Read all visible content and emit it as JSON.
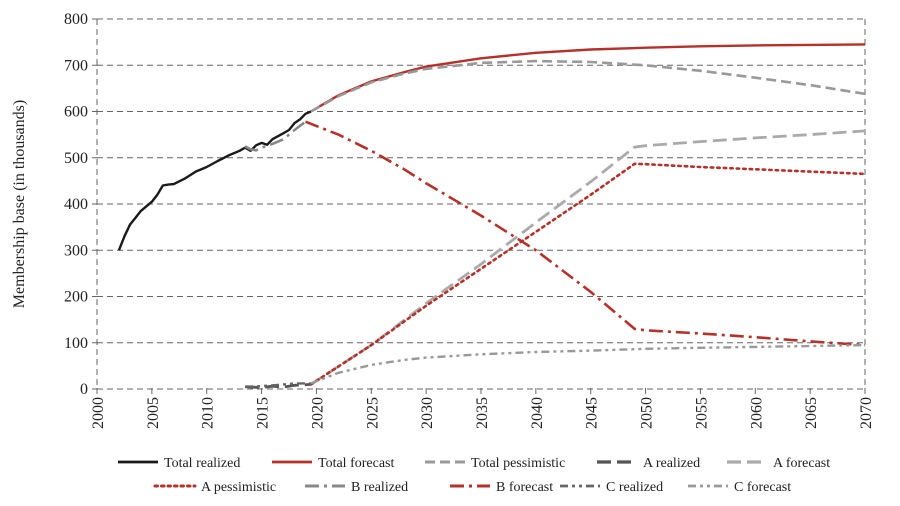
{
  "chart_data": {
    "type": "line",
    "title": "",
    "xlabel": "",
    "ylabel": "Membership base (in thousands)",
    "xlim": [
      2000,
      2070
    ],
    "ylim": [
      0,
      800
    ],
    "x_ticks": [
      "2000",
      "2005",
      "2010",
      "2015",
      "2020",
      "2025",
      "2030",
      "2035",
      "2040",
      "2045",
      "2050",
      "2055",
      "2060",
      "2065",
      "2070"
    ],
    "y_ticks": [
      "0",
      "100",
      "200",
      "300",
      "400",
      "500",
      "600",
      "700",
      "800"
    ],
    "grid": true,
    "legend_position": "bottom",
    "series": [
      {
        "name": "Total realized",
        "color": "#1a1a1a",
        "style": "solid",
        "x": [
          2002,
          2002.5,
          2003,
          2003.5,
          2004,
          2005,
          2005.5,
          2006,
          2006.5,
          2007,
          2008,
          2009,
          2010,
          2011,
          2012,
          2013,
          2013.5,
          2014,
          2014.5,
          2015,
          2015.5,
          2016,
          2017,
          2017.5,
          2018,
          2018.5,
          2019,
          2019.5
        ],
        "y": [
          300,
          330,
          355,
          370,
          385,
          405,
          420,
          440,
          442,
          443,
          455,
          470,
          480,
          493,
          505,
          515,
          522,
          515,
          527,
          532,
          528,
          540,
          553,
          560,
          575,
          583,
          595,
          600
        ]
      },
      {
        "name": "Total forecast",
        "color": "#b5312a",
        "style": "solid",
        "x": [
          2019.5,
          2022,
          2025,
          2028,
          2030,
          2035,
          2040,
          2045,
          2050,
          2055,
          2060,
          2065,
          2070
        ],
        "y": [
          600,
          635,
          665,
          685,
          697,
          715,
          727,
          734,
          738,
          741,
          743,
          744,
          745
        ]
      },
      {
        "name": "Total pessimistic",
        "color": "#999999",
        "style": "dash",
        "x": [
          2019.5,
          2022,
          2025,
          2028,
          2030,
          2035,
          2040,
          2045,
          2050,
          2055,
          2060,
          2065,
          2070
        ],
        "y": [
          600,
          633,
          663,
          682,
          692,
          705,
          709,
          707,
          700,
          688,
          673,
          657,
          638
        ]
      },
      {
        "name": "A realized",
        "color": "#555555",
        "style": "longdash",
        "x": [
          2013.5,
          2015,
          2016,
          2017,
          2018,
          2019.5
        ],
        "y": [
          5,
          3,
          6,
          4,
          8,
          10
        ]
      },
      {
        "name": "A forecast",
        "color": "#aaaaaa",
        "style": "longdash",
        "x": [
          2019.5,
          2025,
          2030,
          2035,
          2040,
          2045,
          2049,
          2050,
          2055,
          2060,
          2065,
          2070
        ],
        "y": [
          10,
          95,
          185,
          270,
          360,
          448,
          523,
          526,
          535,
          543,
          550,
          558
        ]
      },
      {
        "name": "A pessimistic",
        "color": "#b5312a",
        "style": "dot",
        "x": [
          2019.5,
          2025,
          2030,
          2035,
          2040,
          2045,
          2049,
          2050,
          2055,
          2060,
          2065,
          2070
        ],
        "y": [
          10,
          95,
          180,
          260,
          340,
          420,
          487,
          486,
          480,
          475,
          470,
          465
        ]
      },
      {
        "name": "B realized",
        "color": "#888888",
        "style": "dashdot",
        "x": [
          2013.5,
          2014,
          2014.5,
          2015,
          2016,
          2017,
          2018,
          2019
        ],
        "y": [
          525,
          518,
          516,
          522,
          530,
          540,
          560,
          578
        ]
      },
      {
        "name": "B forecast",
        "color": "#b5312a",
        "style": "dashdot",
        "x": [
          2019,
          2022,
          2025,
          2028,
          2030,
          2035,
          2038,
          2040,
          2045,
          2049,
          2050,
          2055,
          2060,
          2065,
          2070
        ],
        "y": [
          578,
          550,
          515,
          475,
          445,
          375,
          330,
          300,
          210,
          130,
          127,
          120,
          112,
          103,
          95
        ]
      },
      {
        "name": "C realized",
        "color": "#666666",
        "style": "dashdotdot",
        "x": [
          2013.5,
          2015,
          2016,
          2017,
          2018,
          2019.5
        ],
        "y": [
          5,
          6,
          8,
          10,
          12,
          12
        ]
      },
      {
        "name": "C forecast",
        "color": "#999999",
        "style": "dashdotdot",
        "x": [
          2019.5,
          2022,
          2025,
          2028,
          2030,
          2035,
          2040,
          2045,
          2050,
          2055,
          2060,
          2065,
          2070
        ],
        "y": [
          12,
          35,
          52,
          63,
          68,
          75,
          80,
          83,
          87,
          89,
          91,
          93,
          95
        ]
      }
    ]
  }
}
